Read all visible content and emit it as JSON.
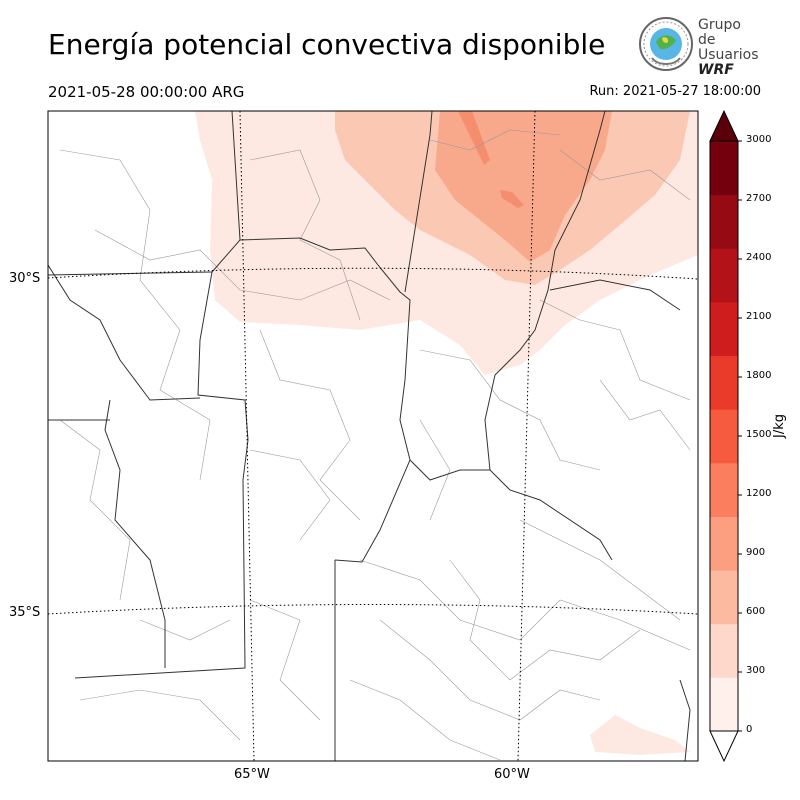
{
  "title": "Energía potencial convectiva disponible",
  "valid_time": "2021-05-28 00:00:00 ARG",
  "run_time": "Run: 2021-05-27 18:00:00",
  "logo": {
    "line1": "Grupo de",
    "line2": "Usuarios",
    "line3": "WRF",
    "icon": "globe-emblem-icon"
  },
  "map": {
    "lat_labels": [
      "30°S",
      "35°S"
    ],
    "lon_labels": [
      "65°W",
      "60°W"
    ],
    "gridlines": "dotted"
  },
  "colorbar": {
    "unit": "J/kg",
    "ticks": [
      "0",
      "300",
      "600",
      "900",
      "1200",
      "1500",
      "1800",
      "2100",
      "2400",
      "2700",
      "3000"
    ],
    "colors": [
      "#fff0eb",
      "#fed9cb",
      "#fcbba0",
      "#fc9f81",
      "#fb7f5e",
      "#f65b40",
      "#e93a2a",
      "#cf1c1d",
      "#b31318",
      "#960b13",
      "#74000e"
    ],
    "extend": "both"
  }
}
